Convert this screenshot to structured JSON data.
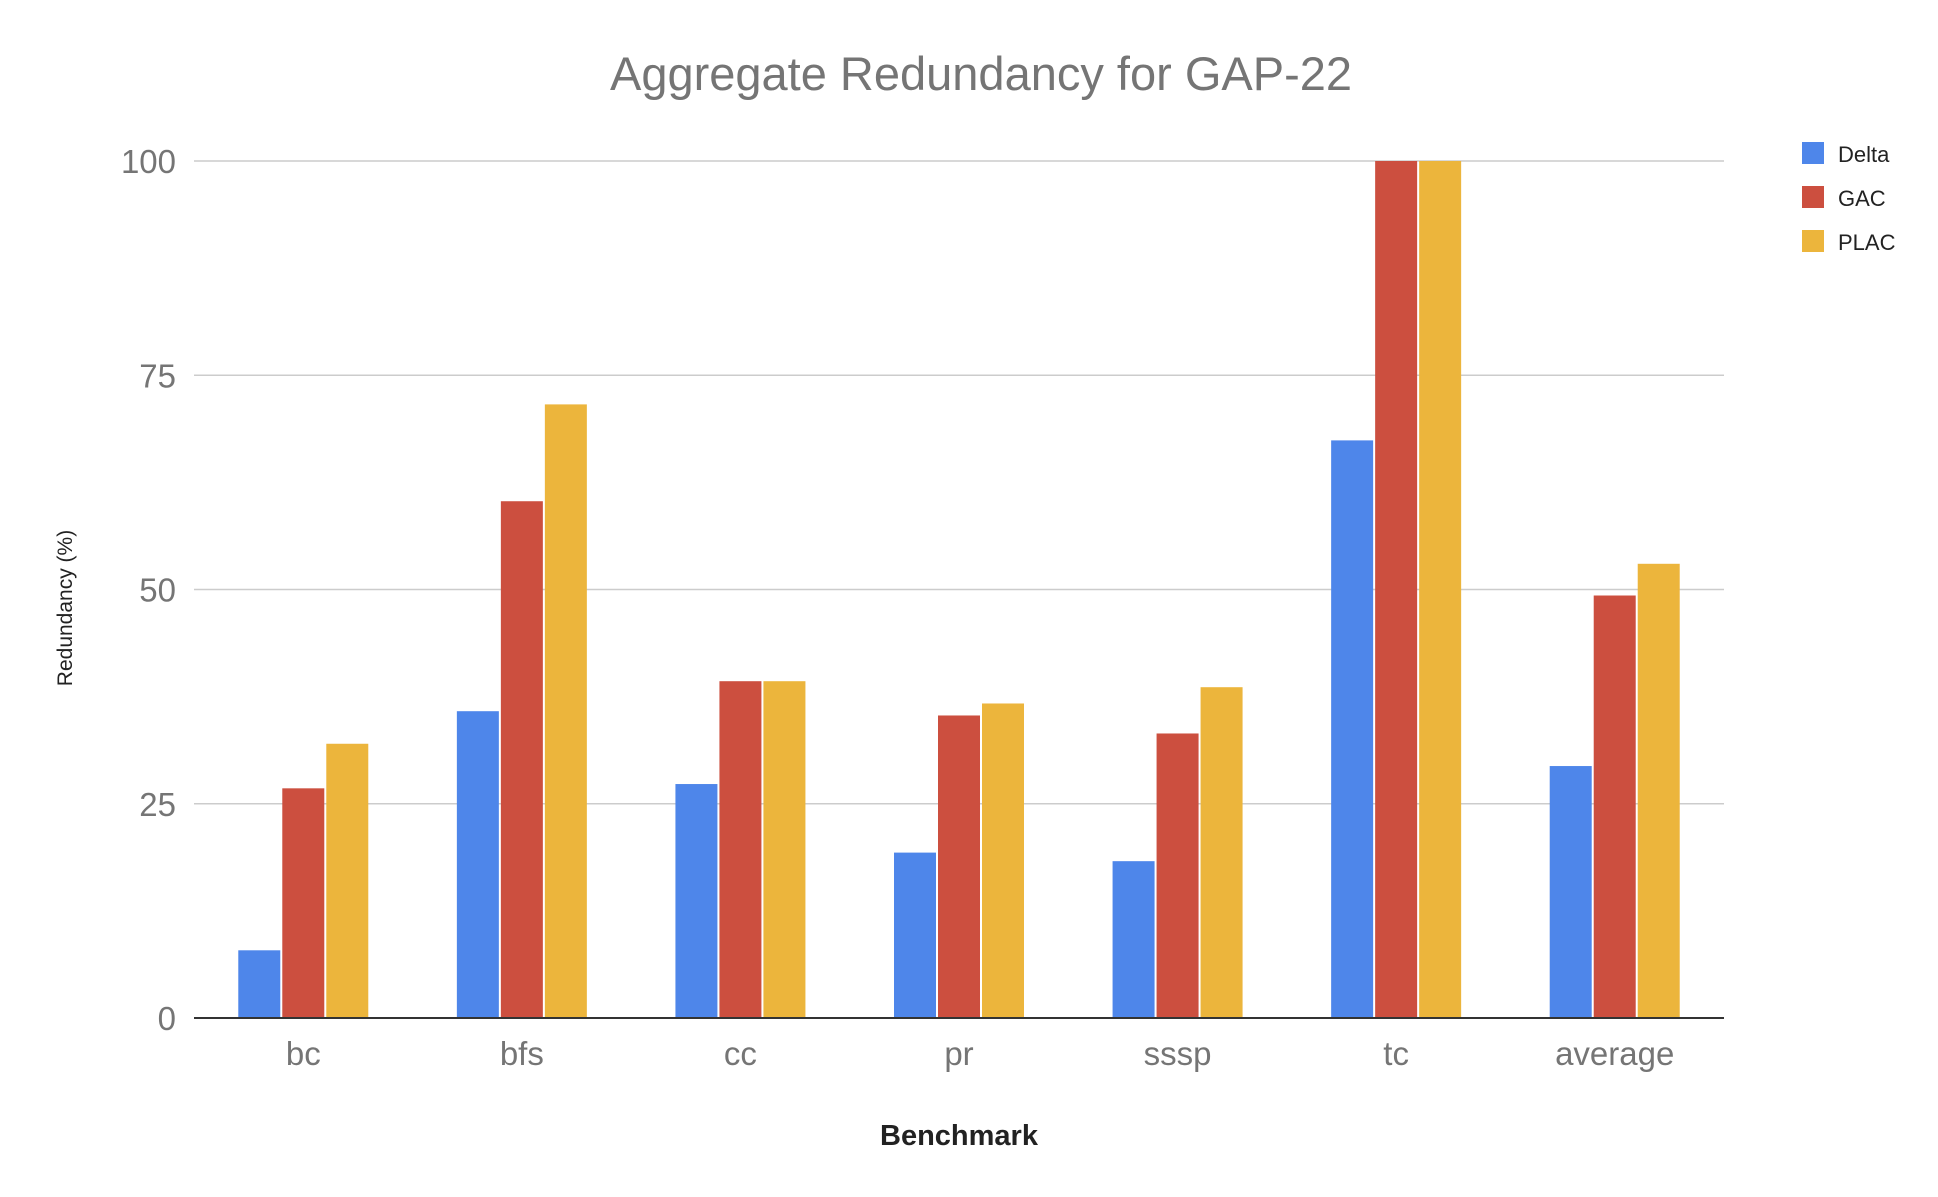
{
  "chart_data": {
    "type": "bar",
    "title": "Aggregate Redundancy for GAP-22",
    "xlabel": "Benchmark",
    "ylabel": "Redundancy (%)",
    "categories": [
      "bc",
      "bfs",
      "cc",
      "pr",
      "sssp",
      "tc",
      "average"
    ],
    "ylim": [
      0,
      100
    ],
    "yticks": [
      "0",
      "25",
      "50",
      "75",
      "100"
    ],
    "grid": true,
    "legend_position": "right",
    "series": [
      {
        "name": "Delta",
        "color": "#4e86ea",
        "values": [
          7.9,
          35.8,
          27.3,
          19.3,
          18.3,
          67.4,
          29.4
        ]
      },
      {
        "name": "GAC",
        "color": "#cc4f3f",
        "values": [
          26.8,
          60.3,
          39.3,
          35.3,
          33.2,
          100,
          49.3
        ]
      },
      {
        "name": "PLAC",
        "color": "#ecb53c",
        "values": [
          32.0,
          71.6,
          39.3,
          36.7,
          38.6,
          100,
          53.0
        ]
      }
    ]
  }
}
